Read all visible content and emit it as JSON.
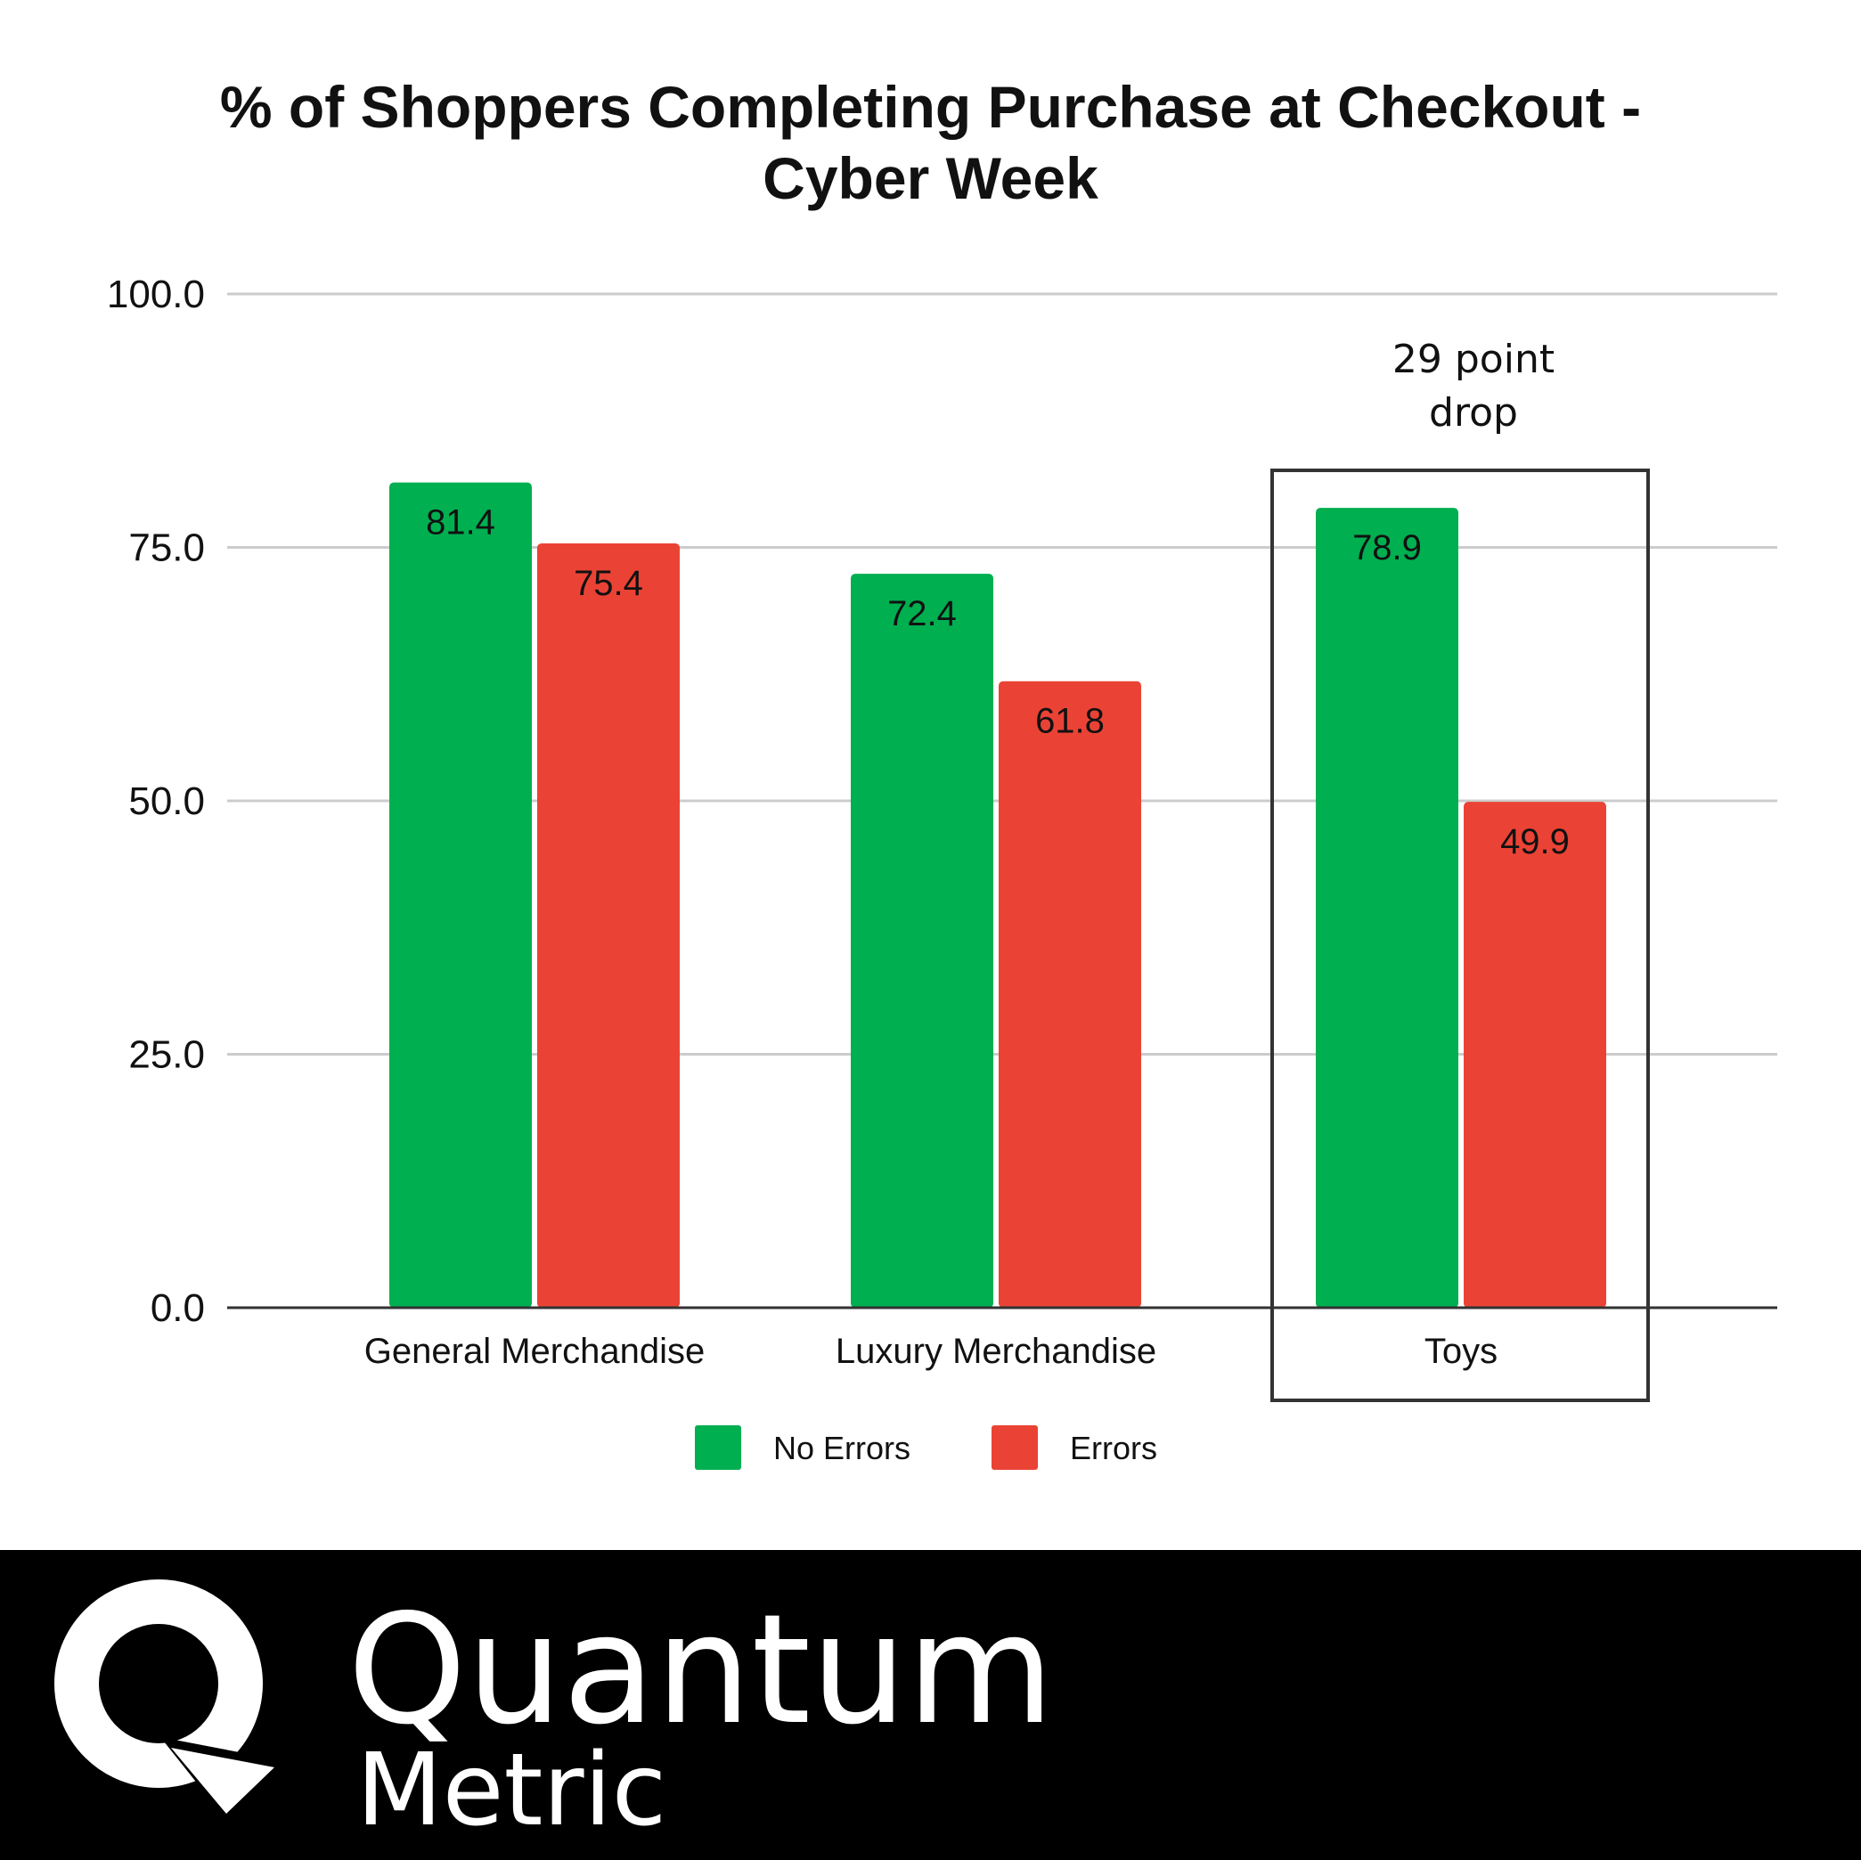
{
  "title": {
    "line1": "% of Shoppers Completing Purchase at Checkout -",
    "line2": "Cyber Week"
  },
  "chart_data": {
    "type": "bar",
    "categories": [
      "General Merchandise",
      "Luxury Merchandise",
      "Toys"
    ],
    "series": [
      {
        "name": "No Errors",
        "color": "#00AF50",
        "values": [
          81.4,
          72.4,
          78.9
        ]
      },
      {
        "name": "Errors",
        "color": "#EA4335",
        "values": [
          75.4,
          61.8,
          49.9
        ]
      }
    ],
    "value_labels": [
      [
        "81.4",
        "72.4",
        "78.9"
      ],
      [
        "75.4",
        "61.8",
        "49.9"
      ]
    ],
    "ylim": [
      0,
      100
    ],
    "yticks": [
      "0.0",
      "25.0",
      "50.0",
      "75.0",
      "100.0"
    ],
    "grid": true,
    "legend": "bottom",
    "annotation": {
      "category": "Toys",
      "lines": [
        "29 point",
        "drop"
      ]
    }
  },
  "footer": {
    "brand_line1": "Quantum",
    "brand_line2": "Metric",
    "logo_icon": "quantum-metric-q-logo"
  }
}
